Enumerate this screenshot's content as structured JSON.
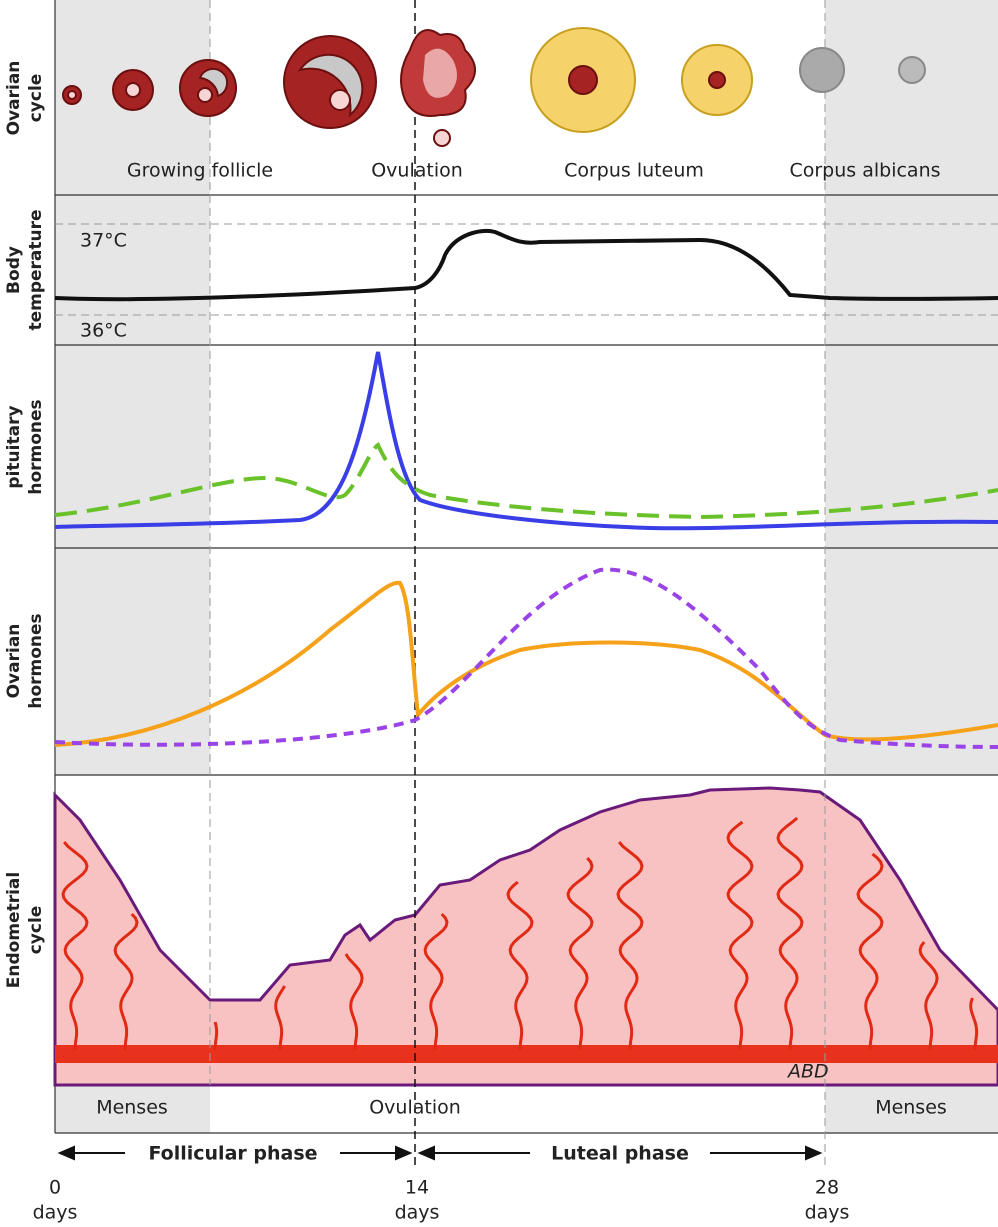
{
  "row_labels": [
    [
      "Ovarian",
      "cycle"
    ],
    [
      "Body",
      "temperature"
    ],
    [
      "pituitary",
      "hormones"
    ],
    [
      "Ovarian",
      "hormones"
    ],
    [
      "Endometrial",
      "cycle"
    ]
  ],
  "ovarian_stages": [
    "Growing follicle",
    "Ovulation",
    "Corpus luteum",
    "Corpus albicans"
  ],
  "temperature_labels": [
    "37°C",
    "36°C"
  ],
  "event_row": [
    "Menses",
    "Ovulation",
    "Menses"
  ],
  "phases": [
    "Follicular phase",
    "Luteal phase"
  ],
  "day_ticks": [
    {
      "value": "0",
      "unit": "days"
    },
    {
      "value": "14",
      "unit": "days"
    },
    {
      "value": "28",
      "unit": "days"
    }
  ],
  "signature": "ABD"
}
